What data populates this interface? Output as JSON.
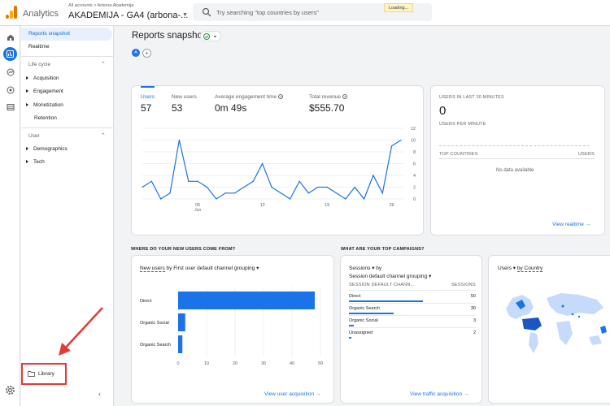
{
  "app": {
    "title": "Analytics",
    "breadcrumb": "All accounts > Arbona Akademija",
    "property": "AKADEMIJA - GA4 (arbona-...",
    "loading": "Loading..."
  },
  "search": {
    "placeholder": "Try searching \"top countries by users\""
  },
  "rail_icons": [
    "home-icon",
    "reports-icon",
    "explore-icon",
    "advertising-icon",
    "configure-icon"
  ],
  "nav": {
    "reports_snapshot": "Reports snapshot",
    "realtime": "Realtime",
    "lifecycle": "Life cycle",
    "lifecycle_items": [
      "Acquisition",
      "Engagement",
      "Monetization",
      "Retention"
    ],
    "user": "User",
    "user_items": [
      "Demographics",
      "Tech"
    ],
    "library": "Library"
  },
  "page": {
    "title": "Reports snapshot",
    "comparison_avatar": "A"
  },
  "metrics": [
    {
      "label": "Users",
      "value": "57"
    },
    {
      "label": "New users",
      "value": "53"
    },
    {
      "label": "Average engagement time",
      "value": "0m 49s"
    },
    {
      "label": "Total revenue",
      "value": "$555.70"
    }
  ],
  "chart_data": [
    {
      "type": "line",
      "x_ticks": [
        "05",
        "12",
        "19",
        "26"
      ],
      "x_tick_sub": "Jun",
      "ylim": [
        0,
        12
      ],
      "y_ticks": [
        "0",
        "2",
        "4",
        "6",
        "8",
        "10",
        "12"
      ],
      "series": [
        {
          "values": [
            2,
            3,
            0,
            1,
            10,
            3,
            3,
            2,
            0,
            1,
            1,
            2,
            3,
            6,
            2,
            1,
            0,
            3,
            1,
            2,
            2,
            1,
            0,
            2,
            0,
            4,
            1,
            9,
            10
          ]
        }
      ]
    },
    {
      "type": "bar",
      "categories": [
        "Direct",
        "Organic Social",
        "Organic Search"
      ],
      "values": [
        48,
        2.5,
        1.5
      ],
      "x_ticks": [
        "0",
        "10",
        "20",
        "30",
        "40",
        "50"
      ],
      "xlim": [
        0,
        50
      ]
    }
  ],
  "realtime": {
    "caption": "USERS IN LAST 30 MINUTES",
    "value": "0",
    "per_minute": "USERS PER MINUTE",
    "top_countries": "TOP COUNTRIES",
    "users_col": "USERS",
    "no_data": "No data available",
    "link": "View realtime"
  },
  "acquisition": {
    "question": "WHERE DO YOUR NEW USERS COME FROM?",
    "header_metric": "New users",
    "header_rest": "by First user default channel grouping",
    "link": "View user acquisition"
  },
  "campaigns": {
    "question": "WHAT ARE YOUR TOP CAMPAIGNS?",
    "header_metric": "Sessions",
    "header_by": "by",
    "header_dim": "Session default channel grouping",
    "col_channel": "SESSION DEFAULT CHANN...",
    "col_sessions": "SESSIONS",
    "rows": [
      {
        "name": "Direct",
        "value": "50"
      },
      {
        "name": "Organic Search",
        "value": "30"
      },
      {
        "name": "Organic Social",
        "value": "3"
      },
      {
        "name": "Unassigned",
        "value": "2"
      }
    ],
    "link": "View traffic acquisition"
  },
  "geo": {
    "header_metric": "Users",
    "header_rest": "by Country"
  },
  "colors": {
    "accent": "#1a73e8",
    "highlight_red": "#e53935",
    "logo_orange": "#f9ab00",
    "logo_dark": "#e37400"
  }
}
